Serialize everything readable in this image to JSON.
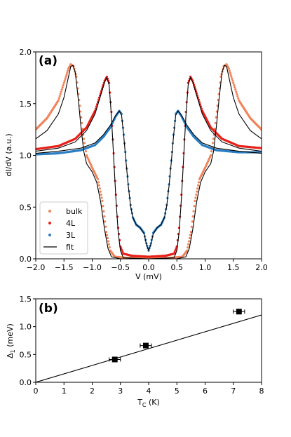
{
  "chart_data": [
    {
      "panel": "(a)",
      "type": "line",
      "xlabel": "V (mV)",
      "ylabel": "dI/dV (a.u.)",
      "xlim": [
        -2.0,
        2.0
      ],
      "ylim": [
        0.0,
        2.0
      ],
      "xticks": [
        "−2.0",
        "−1.5",
        "−1.0",
        "−0.5",
        "0.0",
        "0.5",
        "1.0",
        "1.5",
        "2.0"
      ],
      "yticks": [
        "0.0",
        "0.5",
        "1.0",
        "1.5",
        "2.0"
      ],
      "legend_position": "lower-left",
      "series": [
        {
          "name": "bulk",
          "color": "#f0845a",
          "marker": "dots",
          "points": [
            [
              -2.0,
              1.25
            ],
            [
              -1.8,
              1.36
            ],
            [
              -1.6,
              1.53
            ],
            [
              -1.5,
              1.7
            ],
            [
              -1.42,
              1.84
            ],
            [
              -1.38,
              1.88
            ],
            [
              -1.33,
              1.86
            ],
            [
              -1.28,
              1.76
            ],
            [
              -1.22,
              1.48
            ],
            [
              -1.16,
              1.2
            ],
            [
              -1.1,
              1.0
            ],
            [
              -1.0,
              0.88
            ],
            [
              -0.9,
              0.77
            ],
            [
              -0.82,
              0.56
            ],
            [
              -0.75,
              0.26
            ],
            [
              -0.68,
              0.08
            ],
            [
              -0.6,
              0.02
            ],
            [
              -0.4,
              0.01
            ],
            [
              0.0,
              0.01
            ],
            [
              0.4,
              0.01
            ],
            [
              0.6,
              0.02
            ],
            [
              0.68,
              0.08
            ],
            [
              0.75,
              0.26
            ],
            [
              0.82,
              0.56
            ],
            [
              0.9,
              0.77
            ],
            [
              1.0,
              0.88
            ],
            [
              1.1,
              1.0
            ],
            [
              1.16,
              1.2
            ],
            [
              1.22,
              1.48
            ],
            [
              1.28,
              1.76
            ],
            [
              1.33,
              1.86
            ],
            [
              1.38,
              1.88
            ],
            [
              1.42,
              1.84
            ],
            [
              1.5,
              1.7
            ],
            [
              1.6,
              1.53
            ],
            [
              1.8,
              1.36
            ],
            [
              2.0,
              1.25
            ]
          ]
        },
        {
          "name": "4L",
          "color": "#e8201a",
          "marker": "dots",
          "points": [
            [
              -2.0,
              1.06
            ],
            [
              -1.6,
              1.09
            ],
            [
              -1.3,
              1.16
            ],
            [
              -1.1,
              1.27
            ],
            [
              -0.95,
              1.43
            ],
            [
              -0.85,
              1.6
            ],
            [
              -0.78,
              1.72
            ],
            [
              -0.74,
              1.76
            ],
            [
              -0.7,
              1.7
            ],
            [
              -0.66,
              1.42
            ],
            [
              -0.62,
              1.02
            ],
            [
              -0.58,
              0.62
            ],
            [
              -0.54,
              0.3
            ],
            [
              -0.5,
              0.12
            ],
            [
              -0.45,
              0.05
            ],
            [
              -0.3,
              0.03
            ],
            [
              0.0,
              0.02
            ],
            [
              0.3,
              0.03
            ],
            [
              0.45,
              0.05
            ],
            [
              0.5,
              0.12
            ],
            [
              0.54,
              0.3
            ],
            [
              0.58,
              0.62
            ],
            [
              0.62,
              1.02
            ],
            [
              0.66,
              1.42
            ],
            [
              0.7,
              1.7
            ],
            [
              0.74,
              1.76
            ],
            [
              0.78,
              1.72
            ],
            [
              0.85,
              1.6
            ],
            [
              0.95,
              1.43
            ],
            [
              1.1,
              1.27
            ],
            [
              1.3,
              1.16
            ],
            [
              1.6,
              1.09
            ],
            [
              2.0,
              1.07
            ]
          ]
        },
        {
          "name": "3L",
          "color": "#2b7fc4",
          "marker": "dots",
          "points": [
            [
              -2.0,
              1.01
            ],
            [
              -1.6,
              1.02
            ],
            [
              -1.2,
              1.05
            ],
            [
              -0.95,
              1.1
            ],
            [
              -0.8,
              1.18
            ],
            [
              -0.68,
              1.27
            ],
            [
              -0.58,
              1.38
            ],
            [
              -0.52,
              1.43
            ],
            [
              -0.48,
              1.4
            ],
            [
              -0.44,
              1.2
            ],
            [
              -0.4,
              0.95
            ],
            [
              -0.36,
              0.72
            ],
            [
              -0.32,
              0.52
            ],
            [
              -0.28,
              0.4
            ],
            [
              -0.22,
              0.33
            ],
            [
              -0.15,
              0.3
            ],
            [
              -0.08,
              0.25
            ],
            [
              -0.04,
              0.15
            ],
            [
              0.0,
              0.08
            ],
            [
              0.04,
              0.15
            ],
            [
              0.08,
              0.25
            ],
            [
              0.15,
              0.3
            ],
            [
              0.22,
              0.33
            ],
            [
              0.28,
              0.4
            ],
            [
              0.32,
              0.52
            ],
            [
              0.36,
              0.72
            ],
            [
              0.4,
              0.95
            ],
            [
              0.44,
              1.2
            ],
            [
              0.48,
              1.4
            ],
            [
              0.52,
              1.43
            ],
            [
              0.58,
              1.38
            ],
            [
              0.68,
              1.27
            ],
            [
              0.8,
              1.18
            ],
            [
              0.95,
              1.1
            ],
            [
              1.2,
              1.05
            ],
            [
              1.6,
              1.03
            ],
            [
              2.0,
              1.03
            ]
          ]
        },
        {
          "name": "fit",
          "color": "#000000",
          "marker": "line",
          "curves": [
            [
              [
                -2.0,
                1.16
              ],
              [
                -1.8,
                1.24
              ],
              [
                -1.6,
                1.4
              ],
              [
                -1.5,
                1.56
              ],
              [
                -1.42,
                1.76
              ],
              [
                -1.38,
                1.86
              ],
              [
                -1.34,
                1.87
              ],
              [
                -1.3,
                1.8
              ],
              [
                -1.25,
                1.56
              ],
              [
                -1.2,
                1.28
              ],
              [
                -1.15,
                1.04
              ],
              [
                -1.1,
                0.92
              ],
              [
                -1.0,
                0.84
              ],
              [
                -0.92,
                0.74
              ],
              [
                -0.85,
                0.55
              ],
              [
                -0.78,
                0.28
              ],
              [
                -0.72,
                0.1
              ],
              [
                -0.66,
                0.02
              ],
              [
                -0.5,
                0.0
              ],
              [
                0.0,
                0.0
              ],
              [
                0.5,
                0.0
              ],
              [
                0.66,
                0.02
              ],
              [
                0.72,
                0.1
              ],
              [
                0.78,
                0.28
              ],
              [
                0.85,
                0.55
              ],
              [
                0.92,
                0.74
              ],
              [
                1.0,
                0.84
              ],
              [
                1.1,
                0.92
              ],
              [
                1.15,
                1.04
              ],
              [
                1.2,
                1.28
              ],
              [
                1.25,
                1.56
              ],
              [
                1.3,
                1.8
              ],
              [
                1.34,
                1.87
              ],
              [
                1.38,
                1.86
              ],
              [
                1.42,
                1.76
              ],
              [
                1.5,
                1.56
              ],
              [
                1.6,
                1.4
              ],
              [
                1.8,
                1.24
              ],
              [
                2.0,
                1.16
              ]
            ],
            [
              [
                -2.0,
                1.04
              ],
              [
                -1.6,
                1.07
              ],
              [
                -1.3,
                1.13
              ],
              [
                -1.1,
                1.24
              ],
              [
                -0.95,
                1.4
              ],
              [
                -0.85,
                1.58
              ],
              [
                -0.78,
                1.71
              ],
              [
                -0.74,
                1.75
              ],
              [
                -0.7,
                1.68
              ],
              [
                -0.66,
                1.38
              ],
              [
                -0.62,
                0.98
              ],
              [
                -0.58,
                0.58
              ],
              [
                -0.54,
                0.26
              ],
              [
                -0.5,
                0.08
              ],
              [
                -0.45,
                0.01
              ],
              [
                0.0,
                0.0
              ],
              [
                0.45,
                0.01
              ],
              [
                0.5,
                0.08
              ],
              [
                0.54,
                0.26
              ],
              [
                0.58,
                0.58
              ],
              [
                0.62,
                0.98
              ],
              [
                0.66,
                1.38
              ],
              [
                0.7,
                1.68
              ],
              [
                0.74,
                1.75
              ],
              [
                0.78,
                1.71
              ],
              [
                0.85,
                1.58
              ],
              [
                0.95,
                1.4
              ],
              [
                1.1,
                1.24
              ],
              [
                1.3,
                1.13
              ],
              [
                1.6,
                1.07
              ],
              [
                2.0,
                1.04
              ]
            ],
            [
              [
                -2.0,
                1.02
              ],
              [
                -1.6,
                1.04
              ],
              [
                -1.2,
                1.07
              ],
              [
                -0.95,
                1.12
              ],
              [
                -0.8,
                1.2
              ],
              [
                -0.68,
                1.29
              ],
              [
                -0.58,
                1.39
              ],
              [
                -0.52,
                1.43
              ],
              [
                -0.48,
                1.39
              ],
              [
                -0.44,
                1.18
              ],
              [
                -0.4,
                0.93
              ],
              [
                -0.36,
                0.7
              ],
              [
                -0.32,
                0.51
              ],
              [
                -0.28,
                0.4
              ],
              [
                -0.22,
                0.33
              ],
              [
                -0.15,
                0.3
              ],
              [
                -0.08,
                0.24
              ],
              [
                -0.04,
                0.14
              ],
              [
                0.0,
                0.08
              ],
              [
                0.04,
                0.14
              ],
              [
                0.08,
                0.24
              ],
              [
                0.15,
                0.3
              ],
              [
                0.22,
                0.33
              ],
              [
                0.28,
                0.4
              ],
              [
                0.32,
                0.51
              ],
              [
                0.36,
                0.7
              ],
              [
                0.4,
                0.93
              ],
              [
                0.44,
                1.18
              ],
              [
                0.48,
                1.39
              ],
              [
                0.52,
                1.43
              ],
              [
                0.58,
                1.39
              ],
              [
                0.68,
                1.29
              ],
              [
                0.8,
                1.2
              ],
              [
                0.95,
                1.12
              ],
              [
                1.2,
                1.07
              ],
              [
                1.6,
                1.04
              ],
              [
                2.0,
                1.02
              ]
            ]
          ]
        }
      ]
    },
    {
      "panel": "(b)",
      "type": "scatter",
      "xlabel": "T",
      "xlabel_sub": "C",
      "xlabel_unit": " (K)",
      "ylabel": "Δ",
      "ylabel_sub": "1",
      "ylabel_unit": " (meV)",
      "xlim": [
        0,
        8
      ],
      "ylim": [
        0.0,
        1.5
      ],
      "xticks": [
        "0",
        "1",
        "2",
        "3",
        "4",
        "5",
        "6",
        "7",
        "8"
      ],
      "yticks": [
        "0.0",
        "0.5",
        "1.0",
        "1.5"
      ],
      "points": [
        {
          "x": 2.8,
          "y": 0.41,
          "xerr": 0.2
        },
        {
          "x": 3.9,
          "y": 0.66,
          "xerr": 0.2
        },
        {
          "x": 7.2,
          "y": 1.27,
          "xerr": 0.2
        }
      ],
      "fit_line": [
        [
          0,
          0.0
        ],
        [
          8,
          1.21
        ]
      ]
    }
  ]
}
